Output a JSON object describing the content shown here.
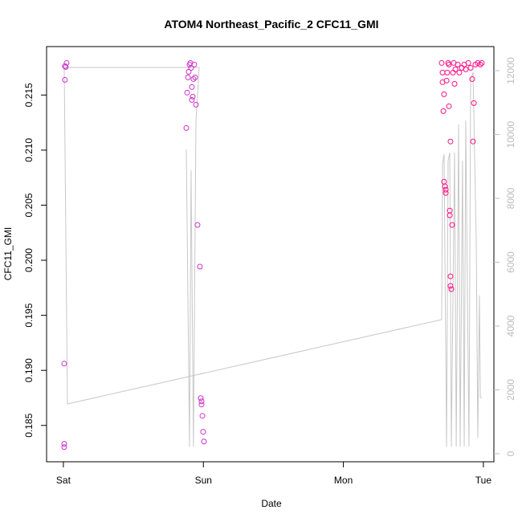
{
  "chart_data": {
    "type": "scatter",
    "title": "ATOM4 Northeast_Pacific_2 CFC11_GMI",
    "x_label": "Date",
    "y_label": "CFC11_GMI",
    "xlim": [
      -0.12,
      3.075
    ],
    "xticks": [
      {
        "value": 0,
        "label": "Sat"
      },
      {
        "value": 1,
        "label": "Sun"
      },
      {
        "value": 2,
        "label": "Mon"
      },
      {
        "value": 3,
        "label": "Tue"
      }
    ],
    "ylim": [
      0.1817,
      0.2194
    ],
    "yticks": [
      0.185,
      {
        "value": 0.19,
        "label": "0.190"
      },
      0.195,
      {
        "value": 0.2,
        "label": "0.200"
      },
      0.205,
      {
        "value": 0.21,
        "label": "0.210"
      },
      0.215
    ],
    "y2lim": [
      -252,
      12755
    ],
    "y2ticks": [
      0,
      2000,
      4000,
      6000,
      8000,
      10000,
      12000
    ],
    "series": [
      {
        "type": "scatter",
        "color": "#cc33cc",
        "x": [
          0.006,
          0.006,
          0.006,
          0.011,
          0.017,
          0.023,
          0.011,
          0.878,
          0.884,
          0.89,
          0.895,
          0.901,
          0.907,
          0.912,
          0.918,
          0.918,
          0.924,
          0.929,
          0.935,
          0.941,
          0.947,
          0.958,
          0.975,
          0.981,
          0.987,
          0.987,
          0.993,
          0.998,
          1.004
        ],
        "values": [
          0.18333,
          0.18303,
          0.19061,
          0.21638,
          0.21755,
          0.21791,
          0.21762,
          0.21201,
          0.21522,
          0.2166,
          0.21711,
          0.21777,
          0.21791,
          0.21747,
          0.21573,
          0.21456,
          0.21485,
          0.21645,
          0.21777,
          0.2166,
          0.21412,
          0.2032,
          0.19942,
          0.18748,
          0.18719,
          0.1869,
          0.18587,
          0.18442,
          0.18354
        ]
      },
      {
        "type": "scatter",
        "color": "#ff0f87",
        "x": [
          2.702,
          2.708,
          2.708,
          2.714,
          2.719,
          2.719,
          2.725,
          2.731,
          2.731,
          2.737,
          2.742,
          2.748,
          2.754,
          2.754,
          2.76,
          2.76,
          2.765,
          2.765,
          2.765,
          2.771,
          2.777,
          2.783,
          2.788,
          2.794,
          2.8,
          2.817,
          2.828,
          2.846,
          2.863,
          2.874,
          2.892,
          2.909,
          2.92,
          2.926,
          2.932,
          2.943,
          2.96,
          2.978,
          2.989
        ],
        "values": [
          0.21791,
          0.21704,
          0.21616,
          0.21354,
          0.21507,
          0.20713,
          0.2067,
          0.20611,
          0.2064,
          0.21631,
          0.21704,
          0.21791,
          0.21777,
          0.21398,
          0.20451,
          0.20408,
          0.21078,
          0.19854,
          0.19767,
          0.19738,
          0.2032,
          0.21704,
          0.21791,
          0.21602,
          0.21733,
          0.21777,
          0.21704,
          0.21747,
          0.21777,
          0.21733,
          0.21791,
          0.21747,
          0.21645,
          0.21078,
          0.21427,
          0.21777,
          0.21791,
          0.21777,
          0.21791
        ]
      },
      {
        "type": "line",
        "axis": "y2",
        "color": "#c8c8c8",
        "x": [
          0.878,
          0.901,
          0.912,
          0.929,
          0.947,
          0.97,
          0.006,
          0.029,
          2.702,
          2.708,
          2.719,
          2.737,
          2.748,
          2.76,
          2.771,
          2.794,
          2.806,
          2.823,
          2.834,
          2.851,
          2.863,
          2.874,
          2.897,
          2.909,
          2.926,
          2.949,
          2.96,
          2.972,
          2.978,
          2.989
        ],
        "values": [
          9536,
          226,
          8881,
          226,
          10441,
          12102,
          12102,
          1560,
          4202,
          9058,
          9385,
          226,
          9183,
          9435,
          226,
          9435,
          226,
          10316,
          226,
          9183,
          226,
          10441,
          226,
          11699,
          11951,
          6667,
          503,
          4957,
          1761,
          1761
        ]
      }
    ]
  }
}
